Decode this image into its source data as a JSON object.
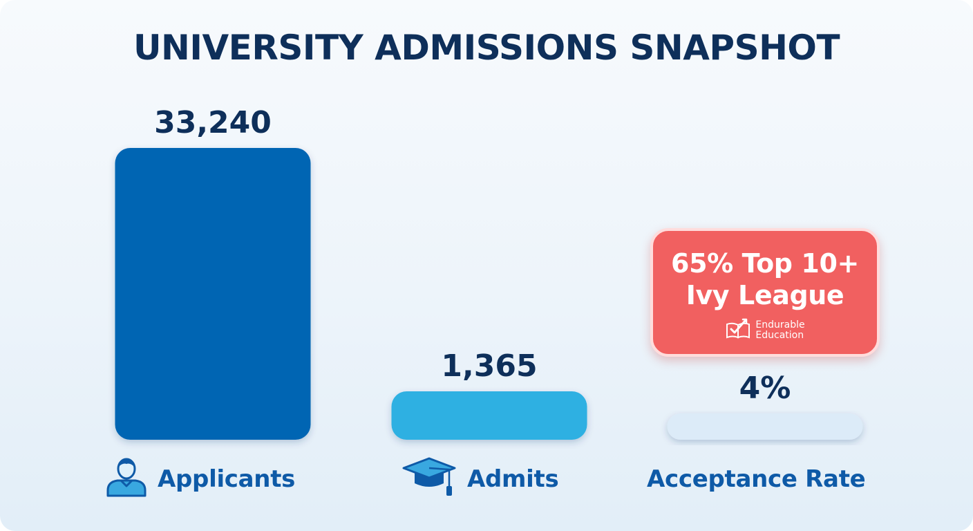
{
  "colors": {
    "title": "#0e2f5a",
    "label": "#0e5aa7",
    "callout": "#f16060"
  },
  "icons": [
    "user-icon",
    "graduation-cap-icon",
    "book-logo-icon"
  ],
  "callout": {
    "line1": "65% Top 10+",
    "line2": "Ivy League",
    "brand_line1": "Endurable",
    "brand_line2": "Education"
  },
  "chart_data": {
    "type": "bar",
    "title": "UNIVERSITY ADMISSIONS SNAPSHOT",
    "categories": [
      "Applicants",
      "Admits",
      "Acceptance Rate"
    ],
    "values": [
      33240,
      1365,
      4
    ],
    "value_labels": [
      "33,240",
      "1,365",
      "4%"
    ],
    "bar_colors": [
      "#0465b3",
      "#2db0e2",
      "#dcebf8"
    ],
    "xlabel": "",
    "ylabel": "",
    "grid": false,
    "legend": "none"
  }
}
